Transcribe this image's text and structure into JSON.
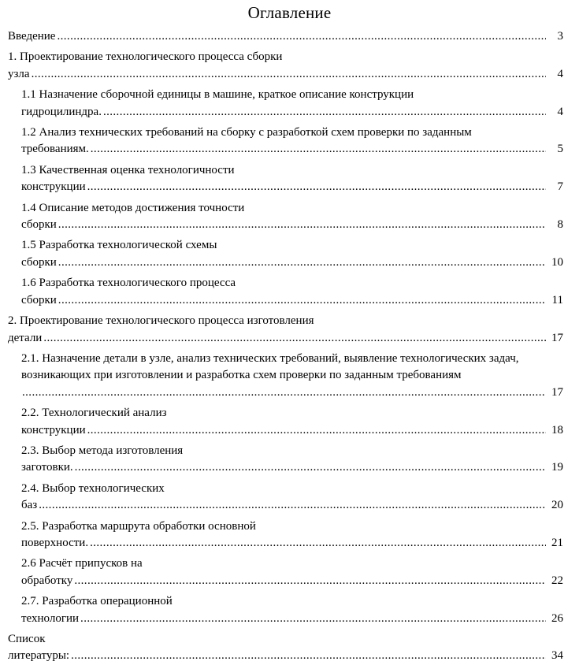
{
  "document": {
    "title": "Оглавление",
    "text_color": "#000000",
    "background_color": "#ffffff"
  },
  "toc": {
    "entries": [
      {
        "level": 0,
        "text": "Введение",
        "page": "3"
      },
      {
        "level": 0,
        "text": "1. Проектирование технологического процесса сборки узла",
        "page": "4"
      },
      {
        "level": 1,
        "text": "1.1 Назначение сборочной единицы в машине, краткое описание конструкции гидроцилиндра.",
        "page": "4"
      },
      {
        "level": 1,
        "text": "1.2 Анализ технических требований на сборку с разработкой схем проверки по заданным требованиям.",
        "page": "5"
      },
      {
        "level": 1,
        "text": "1.3 Качественная оценка технологичности конструкции",
        "page": "7"
      },
      {
        "level": 1,
        "text": "1.4 Описание методов достижения точности сборки",
        "page": "8"
      },
      {
        "level": 1,
        "text": "1.5 Разработка технологической схемы сборки",
        "page": "10"
      },
      {
        "level": 1,
        "text": "1.6 Разработка технологического процесса сборки",
        "page": "11"
      },
      {
        "level": 0,
        "text": "2. Проектирование технологического процесса изготовления детали",
        "page": "17"
      },
      {
        "level": 1,
        "text": "2.1. Назначение детали в узле, анализ технических требований, выявление технологических задач, возникающих при изготовлении и разработка схем проверки по заданным требованиям",
        "page": "17",
        "dots_own_line": true
      },
      {
        "level": 1,
        "text": "2.2. Технологический анализ конструкции",
        "page": "18"
      },
      {
        "level": 1,
        "text": "2.3. Выбор метода изготовления заготовки.",
        "page": "19"
      },
      {
        "level": 1,
        "text": "2.4. Выбор технологических баз",
        "page": "20"
      },
      {
        "level": 1,
        "text": "2.5. Разработка маршрута обработки основной поверхности.",
        "page": "21"
      },
      {
        "level": 1,
        "text": "2.6 Расчёт припусков на обработку",
        "page": "22"
      },
      {
        "level": 1,
        "text": "2.7. Разработка операционной технологии",
        "page": "26"
      },
      {
        "level": 0,
        "text": "Список литературы:",
        "page": "34"
      }
    ]
  }
}
